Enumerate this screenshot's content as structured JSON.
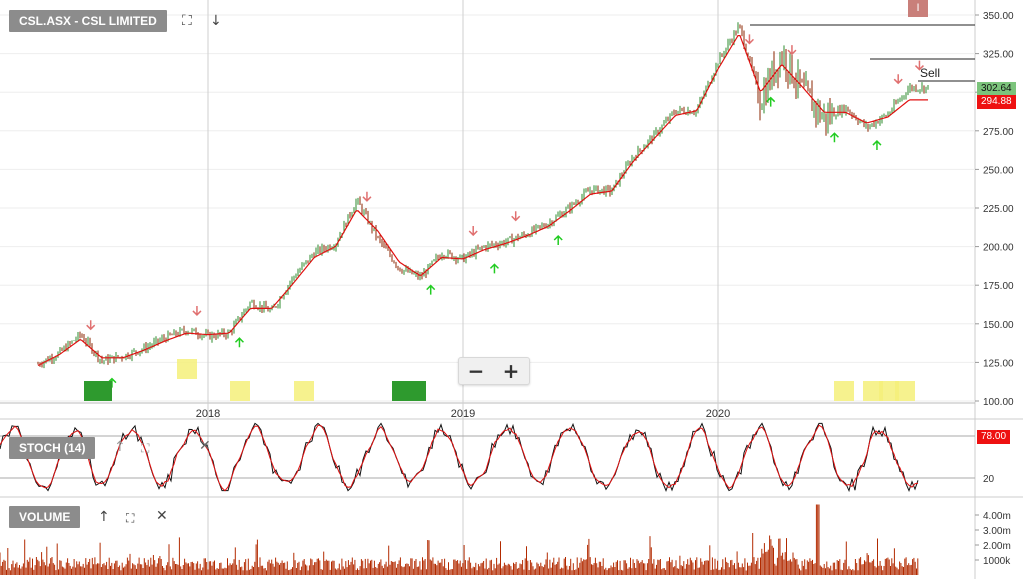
{
  "header": {
    "title": "CSL.ASX - CSL LIMITED",
    "expand_icon": "expand-icon",
    "download_icon": "arrow-down-icon",
    "info_badge": "I"
  },
  "zoom": {
    "out_label": "−",
    "in_label": "+"
  },
  "stoch": {
    "label": "STOCH (14)",
    "value_tag": "78.00",
    "level_low": "20"
  },
  "volume": {
    "label": "VOLUME"
  },
  "colors": {
    "up": "#2e8b2e",
    "down": "#8b2500",
    "ma": "#e01010",
    "sell_arrow": "#e07070",
    "buy_arrow": "#22cc22",
    "volume": "#b22a00",
    "current_tag": "#7cc47c",
    "ma_tag": "#ee1111"
  },
  "chart_data": [
    {
      "type": "line",
      "title": "CSL.ASX - CSL LIMITED",
      "x_ticks": [
        "2018",
        "2019",
        "2020"
      ],
      "y_ticks": [
        "350.00",
        "325.00",
        "300.00",
        "275.00",
        "250.00",
        "225.00",
        "200.00",
        "175.00",
        "150.00",
        "125.00",
        "100.00"
      ],
      "ylim": [
        100,
        355
      ],
      "current_price": "302.64",
      "ma_value": "294.88",
      "sell_label": "Sell",
      "series": [
        {
          "key": "price",
          "x": [
            "2017-05",
            "2017-06",
            "2017-07",
            "2017-08",
            "2017-09",
            "2017-10",
            "2017-11",
            "2017-12",
            "2018-01",
            "2018-02",
            "2018-03",
            "2018-04",
            "2018-05",
            "2018-06",
            "2018-07",
            "2018-08",
            "2018-09",
            "2018-10",
            "2018-11",
            "2018-12",
            "2019-01",
            "2019-02",
            "2019-03",
            "2019-04",
            "2019-05",
            "2019-06",
            "2019-07",
            "2019-08",
            "2019-09",
            "2019-10",
            "2019-11",
            "2019-12",
            "2020-01",
            "2020-02",
            "2020-03",
            "2020-04",
            "2020-05",
            "2020-06",
            "2020-07",
            "2020-08",
            "2020-09",
            "2020-10"
          ],
          "values": [
            124,
            131,
            143,
            126,
            129,
            134,
            141,
            146,
            142,
            144,
            164,
            158,
            180,
            196,
            202,
            230,
            205,
            186,
            180,
            196,
            192,
            200,
            203,
            208,
            215,
            225,
            237,
            236,
            258,
            272,
            288,
            288,
            320,
            343,
            295,
            325,
            300,
            283,
            290,
            277,
            286,
            303
          ]
        },
        {
          "key": "ma",
          "x": [
            "2017-05",
            "2017-06",
            "2017-07",
            "2017-08",
            "2017-09",
            "2017-10",
            "2017-11",
            "2017-12",
            "2018-01",
            "2018-02",
            "2018-03",
            "2018-04",
            "2018-05",
            "2018-06",
            "2018-07",
            "2018-08",
            "2018-09",
            "2018-10",
            "2018-11",
            "2018-12",
            "2019-01",
            "2019-02",
            "2019-03",
            "2019-04",
            "2019-05",
            "2019-06",
            "2019-07",
            "2019-08",
            "2019-09",
            "2019-10",
            "2019-11",
            "2019-12",
            "2020-01",
            "2020-02",
            "2020-03",
            "2020-04",
            "2020-05",
            "2020-06",
            "2020-07",
            "2020-08",
            "2020-09",
            "2020-10"
          ],
          "values": [
            123,
            130,
            140,
            128,
            128,
            133,
            139,
            144,
            143,
            144,
            160,
            160,
            176,
            193,
            200,
            224,
            210,
            190,
            181,
            193,
            192,
            198,
            202,
            207,
            213,
            223,
            234,
            236,
            255,
            270,
            285,
            288,
            315,
            338,
            300,
            318,
            303,
            287,
            287,
            280,
            284,
            295
          ]
        }
      ],
      "annotations": {
        "sell_arrows": [
          "2017-07",
          "2017-12",
          "2018-08",
          "2019-01",
          "2019-03",
          "2020-02",
          "2020-04",
          "2020-09",
          "2020-10"
        ],
        "buy_arrows": [
          "2017-08",
          "2018-02",
          "2018-11",
          "2019-02",
          "2019-05",
          "2020-03",
          "2020-06",
          "2020-08"
        ]
      }
    },
    {
      "type": "line",
      "title": "STOCH (14)",
      "ylim": [
        0,
        100
      ],
      "y_ticks": [
        "20"
      ],
      "series": [
        {
          "key": "stoch",
          "values": [
            78
          ]
        }
      ]
    },
    {
      "type": "bar",
      "title": "VOLUME",
      "y_ticks": [
        "4.00m",
        "3.00m",
        "2.00m",
        "1000k"
      ],
      "ylim": [
        0,
        5000000
      ]
    }
  ]
}
